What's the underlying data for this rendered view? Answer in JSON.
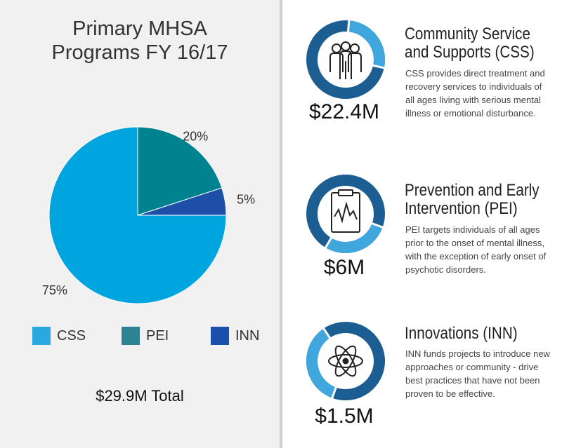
{
  "title_line1": "Primary MHSA",
  "title_line2": "Programs FY 16/17",
  "total": "$29.9M Total",
  "colors": {
    "css": "#00a5e0",
    "pei": "#00838f",
    "inn": "#1d4fa8",
    "ring_dark": "#1c5d92",
    "ring_light": "#3fa7de"
  },
  "chart_data": {
    "type": "pie",
    "slices": [
      {
        "name": "CSS",
        "value": 75,
        "label": "75%",
        "color": "#00a5e0"
      },
      {
        "name": "PEI",
        "value": 20,
        "label": "20%",
        "color": "#00838f"
      },
      {
        "name": "INN",
        "value": 5,
        "label": "5%",
        "color": "#1d4fa8"
      }
    ],
    "legend": [
      "CSS",
      "PEI",
      "INN"
    ],
    "legend_position": "bottom"
  },
  "legend_colors": [
    "#2aa9e1",
    "#2d8294",
    "#1b4fae"
  ],
  "programs": [
    {
      "title_line1": "Community Service",
      "title_line2": "and Supports (CSS)",
      "amount": "$22.4M",
      "icon": "people-icon",
      "ring_light_fraction": 0.27,
      "description": "CSS provides direct treatment and recovery services to individuals of all ages living with serious mental illness or emotional disturbance."
    },
    {
      "title_line1": "Prevention and Early",
      "title_line2": "Intervention (PEI)",
      "amount": "$6M",
      "icon": "clipboard-chart-icon",
      "ring_light_fraction": 0.28,
      "description": "PEI targets individuals of all ages prior to the onset of mental illness, with the exception of early onset of psychotic disorders."
    },
    {
      "title_line1": "Innovations (INN)",
      "title_line2": "",
      "amount": "$1.5M",
      "icon": "atom-icon",
      "ring_light_fraction": 0.35,
      "description": "INN funds projects to introduce new approaches or community - drive best practices that have not been proven to be effective."
    }
  ]
}
